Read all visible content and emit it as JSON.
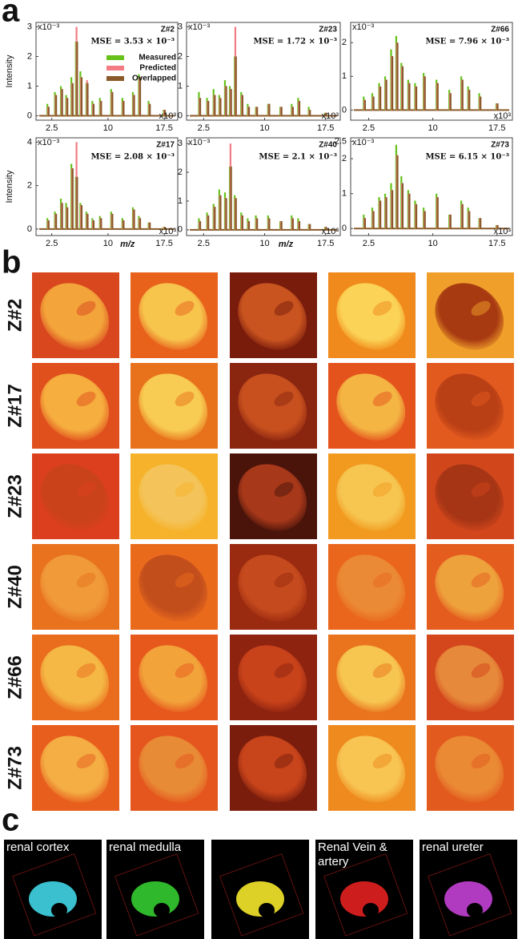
{
  "panel_labels": [
    "a",
    "b",
    "c"
  ],
  "chart_data": [
    {
      "type": "spectrum",
      "title": "Z#2",
      "annotation": "MSE = 3.53 × 10⁻³",
      "ylabel": "Intensity",
      "y_multiplier": "x10⁻³",
      "x_multiplier": "x10³",
      "legend": "top",
      "x": [
        2.0,
        3.0,
        3.8,
        4.5,
        5.2,
        5.8,
        6.4,
        7.2,
        8.0,
        9.0,
        10.5,
        12.0,
        13.4,
        14.2,
        15.5,
        17.5
      ],
      "xlim": [
        0.4,
        19.3
      ],
      "xticks": [
        2.5,
        10,
        17.5
      ],
      "ylim": [
        -0.15,
        3.15
      ],
      "yticks": [
        0,
        1,
        2,
        3
      ],
      "series": [
        {
          "name": "Measured",
          "color": "#66c21a",
          "values": [
            0.4,
            0.8,
            1.0,
            0.7,
            1.3,
            2.5,
            1.5,
            1.1,
            0.5,
            0.6,
            0.9,
            0.6,
            0.8,
            1.4,
            0.5,
            0.2
          ]
        },
        {
          "name": "Predicted",
          "color": "#f27b84",
          "values": [
            0.3,
            0.7,
            0.9,
            0.6,
            1.1,
            3.0,
            1.3,
            1.2,
            0.4,
            0.5,
            0.8,
            0.5,
            0.7,
            1.3,
            0.4,
            0.2
          ]
        },
        {
          "name": "Overlapped",
          "color": "#8a5a2a",
          "values": [
            0.3,
            0.7,
            0.9,
            0.6,
            1.1,
            2.5,
            1.3,
            1.1,
            0.4,
            0.5,
            0.8,
            0.5,
            0.7,
            1.3,
            0.4,
            0.2
          ]
        }
      ]
    },
    {
      "type": "spectrum",
      "title": "Z#23",
      "annotation": "MSE = 1.72 × 10⁻³",
      "y_multiplier": "x10⁻³",
      "x_multiplier": "x10³",
      "x": [
        2.0,
        3.0,
        3.8,
        4.5,
        5.2,
        5.8,
        6.4,
        7.2,
        8.0,
        9.0,
        10.5,
        12.0,
        13.4,
        14.2,
        15.5,
        17.5
      ],
      "xlim": [
        0.4,
        19.3
      ],
      "xticks": [
        2.5,
        10,
        17.5
      ],
      "ylim": [
        -0.15,
        3.15
      ],
      "yticks": [
        0,
        1,
        2,
        3
      ],
      "series": [
        {
          "color": "#66c21a",
          "values": [
            0.8,
            0.6,
            0.9,
            0.7,
            1.2,
            1.0,
            2.0,
            0.8,
            0.4,
            0.3,
            0.4,
            0.3,
            0.4,
            0.6,
            0.3,
            0.1
          ]
        },
        {
          "color": "#f27b84",
          "values": [
            0.6,
            0.5,
            0.7,
            0.6,
            1.0,
            0.9,
            3.0,
            0.7,
            0.3,
            0.3,
            0.4,
            0.3,
            0.3,
            0.5,
            0.2,
            0.1
          ]
        },
        {
          "color": "#8a5a2a",
          "values": [
            0.6,
            0.5,
            0.7,
            0.6,
            1.0,
            0.9,
            2.0,
            0.7,
            0.3,
            0.3,
            0.4,
            0.3,
            0.3,
            0.5,
            0.2,
            0.1
          ]
        }
      ]
    },
    {
      "type": "spectrum",
      "title": "Z#66",
      "annotation": "MSE = 7.96 × 10⁻³",
      "y_multiplier": "x10⁻³",
      "x_multiplier": "x10³",
      "x": [
        2.0,
        3.0,
        3.8,
        4.5,
        5.2,
        5.8,
        6.4,
        7.2,
        8.0,
        9.0,
        10.5,
        12.0,
        13.4,
        14.2,
        15.5,
        17.5
      ],
      "xlim": [
        0.4,
        19.3
      ],
      "xticks": [
        2.5,
        10,
        17.5
      ],
      "ylim": [
        -0.3,
        2.6
      ],
      "yticks": [
        0,
        1,
        2
      ],
      "series": [
        {
          "color": "#66c21a",
          "values": [
            0.4,
            0.5,
            0.8,
            1.0,
            1.8,
            2.2,
            1.4,
            0.9,
            0.8,
            1.1,
            0.9,
            0.6,
            1.0,
            0.7,
            0.5,
            0.2
          ]
        },
        {
          "color": "#f27b84",
          "values": [
            0.3,
            0.4,
            0.7,
            0.9,
            1.6,
            2.0,
            1.3,
            0.8,
            0.7,
            1.0,
            0.8,
            0.5,
            0.9,
            0.6,
            0.4,
            0.2
          ]
        },
        {
          "color": "#8a5a2a",
          "values": [
            0.3,
            0.4,
            0.7,
            0.9,
            1.6,
            2.0,
            1.3,
            0.8,
            0.7,
            1.0,
            0.8,
            0.5,
            0.9,
            0.6,
            0.4,
            0.2
          ]
        }
      ]
    },
    {
      "type": "spectrum",
      "title": "Z#17",
      "annotation": "MSE = 2.08 × 10⁻³",
      "ylabel": "Intensity",
      "xlabel": "m/z",
      "y_multiplier": "x10⁻³",
      "x_multiplier": "x10³",
      "x": [
        2.0,
        3.0,
        3.8,
        4.5,
        5.2,
        5.8,
        6.4,
        7.2,
        8.0,
        9.0,
        10.5,
        12.0,
        13.4,
        14.2,
        15.5,
        17.5
      ],
      "xlim": [
        0.4,
        19.3
      ],
      "xticks": [
        2.5,
        10,
        17.5
      ],
      "ylim": [
        -0.3,
        4.2
      ],
      "yticks": [
        0,
        2,
        4
      ],
      "series": [
        {
          "color": "#66c21a",
          "values": [
            0.5,
            0.8,
            1.4,
            1.2,
            3.0,
            2.4,
            1.2,
            0.8,
            0.5,
            0.6,
            0.8,
            0.5,
            1.0,
            0.6,
            0.3,
            0.1
          ]
        },
        {
          "color": "#f27b84",
          "values": [
            0.4,
            0.7,
            1.2,
            1.0,
            2.8,
            4.0,
            1.1,
            0.7,
            0.4,
            0.5,
            0.7,
            0.4,
            0.9,
            0.5,
            0.3,
            0.1
          ]
        },
        {
          "color": "#8a5a2a",
          "values": [
            0.4,
            0.7,
            1.2,
            1.0,
            2.8,
            2.4,
            1.1,
            0.7,
            0.4,
            0.5,
            0.7,
            0.4,
            0.9,
            0.5,
            0.3,
            0.1
          ]
        }
      ]
    },
    {
      "type": "spectrum",
      "title": "Z#40",
      "annotation": "MSE = 2.1 × 10⁻³",
      "xlabel": "m/z",
      "y_multiplier": "x10⁻³",
      "x_multiplier": "x10³",
      "x": [
        2.0,
        3.0,
        3.8,
        4.5,
        5.2,
        5.8,
        6.4,
        7.2,
        8.0,
        9.0,
        10.5,
        12.0,
        13.4,
        14.2,
        15.5,
        17.5
      ],
      "xlim": [
        0.4,
        19.3
      ],
      "xticks": [
        2.5,
        10,
        17.5
      ],
      "ylim": [
        -0.2,
        3.2
      ],
      "yticks": [
        0,
        1,
        2,
        3
      ],
      "series": [
        {
          "color": "#66c21a",
          "values": [
            0.4,
            0.6,
            0.9,
            1.4,
            1.3,
            2.2,
            1.2,
            0.6,
            0.4,
            0.5,
            0.5,
            0.3,
            0.5,
            0.4,
            0.2,
            0.1
          ]
        },
        {
          "color": "#f27b84",
          "values": [
            0.3,
            0.5,
            0.8,
            1.2,
            1.1,
            3.0,
            1.1,
            0.5,
            0.3,
            0.4,
            0.4,
            0.3,
            0.4,
            0.3,
            0.2,
            0.1
          ]
        },
        {
          "color": "#8a5a2a",
          "values": [
            0.3,
            0.5,
            0.8,
            1.2,
            1.1,
            2.2,
            1.1,
            0.5,
            0.3,
            0.4,
            0.4,
            0.3,
            0.4,
            0.3,
            0.2,
            0.1
          ]
        }
      ]
    },
    {
      "type": "spectrum",
      "title": "Z#73",
      "annotation": "MSE = 6.15 × 10⁻³",
      "y_multiplier": "x10⁻³",
      "x_multiplier": "x10³",
      "x": [
        2.0,
        3.0,
        3.8,
        4.5,
        5.2,
        5.8,
        6.4,
        7.2,
        8.0,
        9.0,
        10.5,
        12.0,
        13.4,
        14.2,
        15.5,
        17.5
      ],
      "xlim": [
        0.4,
        19.3
      ],
      "xticks": [
        2.5,
        10,
        17.5
      ],
      "ylim": [
        -0.2,
        2.6
      ],
      "yticks": [
        0,
        1,
        2,
        2.5
      ],
      "series": [
        {
          "color": "#66c21a",
          "values": [
            0.4,
            0.6,
            0.9,
            1.0,
            1.3,
            2.4,
            1.5,
            1.1,
            0.8,
            0.6,
            1.0,
            0.4,
            0.8,
            0.6,
            0.3,
            0.1
          ]
        },
        {
          "color": "#f27b84",
          "values": [
            0.3,
            0.5,
            0.8,
            0.9,
            1.1,
            2.1,
            1.3,
            1.0,
            0.7,
            0.5,
            0.9,
            0.4,
            0.7,
            0.5,
            0.3,
            0.1
          ]
        },
        {
          "color": "#8a5a2a",
          "values": [
            0.3,
            0.5,
            0.8,
            0.9,
            1.1,
            2.1,
            1.3,
            1.0,
            0.7,
            0.5,
            0.9,
            0.4,
            0.7,
            0.5,
            0.3,
            0.1
          ]
        }
      ]
    }
  ],
  "heatmaps": {
    "rows": [
      {
        "label": "Z#2",
        "tiles": [
          [
            "#d9471e",
            "#f3a43a"
          ],
          [
            "#e8621c",
            "#f7c44c"
          ],
          [
            "#7a1c0c",
            "#c9541f"
          ],
          [
            "#f08a1c",
            "#fbd356"
          ],
          [
            "#f0a02a",
            "#a83a12"
          ]
        ]
      },
      {
        "label": "Z#17",
        "tiles": [
          [
            "#e0501d",
            "#f6ae3e"
          ],
          [
            "#e8721c",
            "#f8cc52"
          ],
          [
            "#8a2510",
            "#c8501e"
          ],
          [
            "#e5531d",
            "#f4b543"
          ],
          [
            "#e35a1e",
            "#b93f15"
          ]
        ]
      },
      {
        "label": "Z#23",
        "tiles": [
          [
            "#dc3f1e",
            "#c9421a"
          ],
          [
            "#f6b22a",
            "#f4c45a"
          ],
          [
            "#4a140a",
            "#a8381a"
          ],
          [
            "#f29a20",
            "#f6c651"
          ],
          [
            "#d2461c",
            "#a53515"
          ]
        ]
      },
      {
        "label": "Z#40",
        "tiles": [
          [
            "#e8721e",
            "#f09a3a"
          ],
          [
            "#ea6a1c",
            "#c24e1c"
          ],
          [
            "#9a2a10",
            "#c54a1d"
          ],
          [
            "#ea661d",
            "#eb8a36"
          ],
          [
            "#e45d1e",
            "#eea23c"
          ]
        ]
      },
      {
        "label": "Z#66",
        "tiles": [
          [
            "#ea6c1d",
            "#f5b845"
          ],
          [
            "#e7581d",
            "#f2a43b"
          ],
          [
            "#8e2310",
            "#c8421a"
          ],
          [
            "#ea741e",
            "#f7c650"
          ],
          [
            "#d4461c",
            "#e7893a"
          ]
        ]
      },
      {
        "label": "Z#73",
        "tiles": [
          [
            "#e85e1d",
            "#f4ae44"
          ],
          [
            "#e4561d",
            "#e88b36"
          ],
          [
            "#7a1d0c",
            "#c8441b"
          ],
          [
            "#ee8a1e",
            "#f8c553"
          ],
          [
            "#e25a1d",
            "#ea8a35"
          ]
        ]
      }
    ]
  },
  "renders": [
    {
      "label": "renal cortex",
      "color": "#3fd0e0"
    },
    {
      "label": "renal medulla",
      "color": "#33c82f"
    },
    {
      "color": "#f0e22a"
    },
    {
      "label": "Renal Vein & artery",
      "color": "#e02020"
    },
    {
      "label": "renal ureter",
      "color": "#c040d0"
    }
  ]
}
